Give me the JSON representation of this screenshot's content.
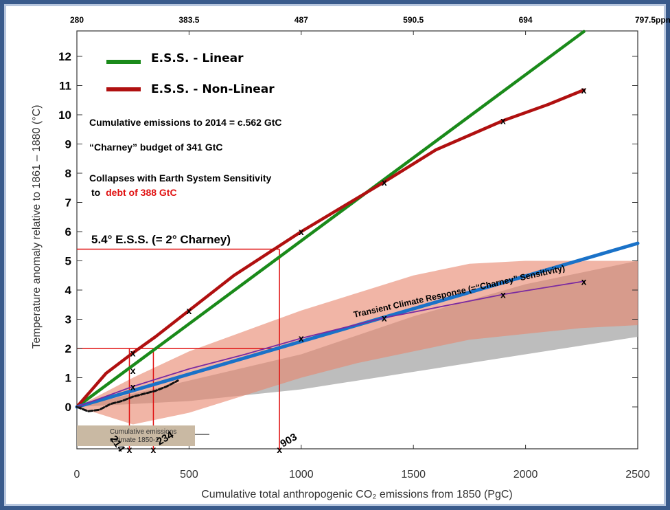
{
  "chart_data": {
    "type": "line",
    "xlabel": "Cumulative total anthropogenic CO₂ emissions from 1850 (PgC)",
    "ylabel": "Temperature anomaly relative to 1861 – 1880 (°C)",
    "xlim": [
      0,
      2500
    ],
    "ylim": [
      -1.5,
      13.0
    ],
    "x_ticks": [
      "0",
      "500",
      "1000",
      "1500",
      "2000",
      "2500"
    ],
    "x_tick_values": [
      0,
      500,
      1000,
      1500,
      2000,
      2500
    ],
    "y_ticks": [
      "0",
      "1",
      "2",
      "3",
      "4",
      "5",
      "6",
      "7",
      "8",
      "9",
      "10",
      "11",
      "12"
    ],
    "y_tick_values": [
      0,
      1,
      2,
      3,
      4,
      5,
      6,
      7,
      8,
      9,
      10,
      11,
      12
    ],
    "top_axis_ticks": [
      "280",
      "383.5",
      "487",
      "590.5",
      "694",
      "797.5ppm"
    ],
    "top_axis_tick_x": [
      0,
      500,
      1000,
      1500,
      2000,
      2500
    ],
    "legend_position": "top-left",
    "colors": {
      "linear": "#1a8a1a",
      "nonlinear": "#b01010",
      "tcr": "#1a72c8",
      "annotation": "#e01010",
      "rcp": "#7a2aa0",
      "shade_red": "#e8846a",
      "shade_grey": "#a7a7a7"
    },
    "series": [
      {
        "name": "E.S.S. - Linear",
        "x": [
          0,
          2260
        ],
        "y": [
          0,
          12.85
        ]
      },
      {
        "name": "E.S.S. - Non-Linear",
        "x": [
          0,
          130,
          250,
          350,
          500,
          700,
          1000,
          1370,
          1600,
          1900,
          2100,
          2260
        ],
        "y": [
          0,
          1.15,
          1.85,
          2.4,
          3.3,
          4.5,
          6.0,
          7.7,
          8.8,
          9.8,
          10.35,
          10.85
        ]
      },
      {
        "name": "Transient Climate Response (=“Charney” Sensitivity)",
        "x": [
          0,
          2500
        ],
        "y": [
          0,
          5.6
        ]
      },
      {
        "name": "",
        "x": [
          0,
          250,
          500,
          750,
          1000,
          1370,
          1900,
          2260
        ],
        "y": [
          0,
          0.7,
          1.3,
          1.8,
          2.35,
          3.05,
          3.85,
          4.3
        ]
      },
      {
        "name": "",
        "x": [
          0,
          50,
          100,
          150,
          200,
          250,
          300,
          350,
          400,
          450
        ],
        "y": [
          0,
          -0.15,
          -0.1,
          0.1,
          0.2,
          0.35,
          0.45,
          0.55,
          0.7,
          0.9
        ]
      }
    ],
    "markers_x": [
      {
        "x": 250,
        "y": 1.85
      },
      {
        "x": 500,
        "y": 3.3
      },
      {
        "x": 1000,
        "y": 6.0
      },
      {
        "x": 1370,
        "y": 7.7
      },
      {
        "x": 1900,
        "y": 9.8
      },
      {
        "x": 2260,
        "y": 10.85
      },
      {
        "x": 250,
        "y": 1.25
      },
      {
        "x": 250,
        "y": 0.7
      },
      {
        "x": 1000,
        "y": 2.35
      },
      {
        "x": 1370,
        "y": 3.05
      },
      {
        "x": 1900,
        "y": 3.85
      },
      {
        "x": 2260,
        "y": 4.3
      }
    ],
    "guides": [
      {
        "x": 903,
        "y": 5.4
      },
      {
        "x": 234,
        "y": 2.0
      },
      {
        "x": 341,
        "y": 2.0
      }
    ],
    "shaded_bands": {
      "red": {
        "x": [
          0,
          250,
          500,
          750,
          1000,
          1250,
          1500,
          1750,
          2000,
          2250,
          2500
        ],
        "upper": [
          0,
          1.0,
          1.9,
          2.6,
          3.3,
          3.9,
          4.5,
          4.9,
          5.0,
          5.0,
          5.0
        ],
        "lower": [
          0,
          -0.6,
          -0.2,
          0.4,
          1.0,
          1.5,
          1.9,
          2.3,
          2.5,
          2.7,
          2.8
        ]
      },
      "grey": {
        "x": [
          0,
          500,
          1000,
          1500,
          2000,
          2500
        ],
        "upper": [
          0,
          0.9,
          1.8,
          3.1,
          4.2,
          5.0
        ],
        "lower": [
          0,
          0.2,
          0.6,
          1.2,
          1.8,
          2.4
        ]
      }
    },
    "annotations": {
      "cumulative_2014": "Cumulative emissions to 2014 = c.562 GtC",
      "charney_budget": "“Charney” budget of 341 GtC",
      "collapse_line1": "Collapses with Earth System Sensitivity",
      "collapse_line2_prefix": "to",
      "collapse_line2_red": "debt of 388 GtC",
      "ess_heading": "5.4° E.S.S. (= 2° Charney)",
      "tcr_label": "Transient Climate Response (=“Charney” Sensitivity)",
      "box_line1": "Cumulative emissions",
      "box_line2": "estimate 1850-2",
      "marker_903": "903",
      "marker_234": "234",
      "marker_214": "214"
    }
  }
}
